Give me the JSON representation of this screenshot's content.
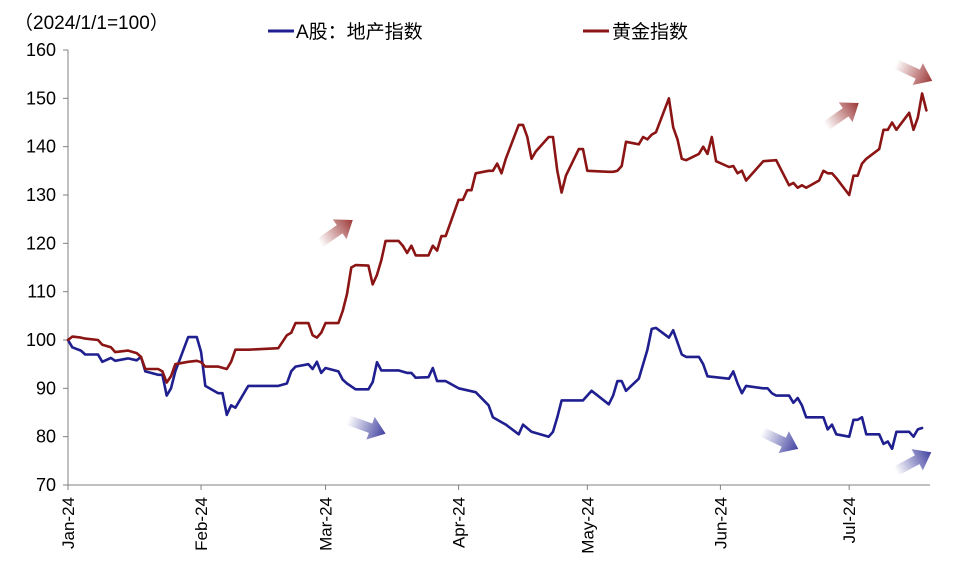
{
  "chart_data": {
    "type": "line",
    "title": "",
    "unit_label": "（2024/1/1=100）",
    "ylim": [
      70,
      160
    ],
    "yticks": [
      70,
      80,
      90,
      100,
      110,
      120,
      130,
      140,
      150,
      160
    ],
    "x_tick_labels": [
      "Jan-24",
      "Feb-24",
      "Mar-24",
      "Apr-24",
      "May-24",
      "Jun-24",
      "Jul-24"
    ],
    "x_tick_dates": [
      "2024-01-01",
      "2024-02-01",
      "2024-03-01",
      "2024-04-01",
      "2024-05-01",
      "2024-06-01",
      "2024-07-01"
    ],
    "grid": false,
    "legend_position": "top",
    "series": [
      {
        "name": "A股：地产指数",
        "color": "#1f1f8f",
        "points": [
          [
            "2024-01-01",
            100
          ],
          [
            "2024-01-02",
            98.5
          ],
          [
            "2024-01-04",
            97.8
          ],
          [
            "2024-01-05",
            97
          ],
          [
            "2024-01-08",
            97
          ],
          [
            "2024-01-09",
            95.5
          ],
          [
            "2024-01-11",
            96.3
          ],
          [
            "2024-01-12",
            95.7
          ],
          [
            "2024-01-15",
            96.2
          ],
          [
            "2024-01-17",
            95.8
          ],
          [
            "2024-01-18",
            96.5
          ],
          [
            "2024-01-19",
            93.5
          ],
          [
            "2024-01-22",
            92.8
          ],
          [
            "2024-01-23",
            92.8
          ],
          [
            "2024-01-24",
            88.5
          ],
          [
            "2024-01-25",
            90
          ],
          [
            "2024-01-26",
            93.5
          ],
          [
            "2024-01-29",
            100.6
          ],
          [
            "2024-01-31",
            100.6
          ],
          [
            "2024-02-01",
            97.5
          ],
          [
            "2024-02-02",
            90.5
          ],
          [
            "2024-02-05",
            89
          ],
          [
            "2024-02-06",
            89
          ],
          [
            "2024-02-07",
            84.5
          ],
          [
            "2024-02-08",
            86.5
          ],
          [
            "2024-02-09",
            86
          ],
          [
            "2024-02-12",
            90.5
          ],
          [
            "2024-02-19",
            90.5
          ],
          [
            "2024-02-21",
            91
          ],
          [
            "2024-02-22",
            93.5
          ],
          [
            "2024-02-23",
            94.5
          ],
          [
            "2024-02-26",
            95
          ],
          [
            "2024-02-27",
            94
          ],
          [
            "2024-02-28",
            95.5
          ],
          [
            "2024-02-29",
            93.2
          ],
          [
            "2024-03-01",
            94.2
          ],
          [
            "2024-03-04",
            93.5
          ],
          [
            "2024-03-05",
            91.8
          ],
          [
            "2024-03-06",
            91
          ],
          [
            "2024-03-08",
            89.8
          ],
          [
            "2024-03-11",
            89.8
          ],
          [
            "2024-03-12",
            91.3
          ],
          [
            "2024-03-13",
            95.4
          ],
          [
            "2024-03-14",
            93.7
          ],
          [
            "2024-03-18",
            93.7
          ],
          [
            "2024-03-20",
            93.2
          ],
          [
            "2024-03-21",
            93.2
          ],
          [
            "2024-03-22",
            92.2
          ],
          [
            "2024-03-25",
            92.3
          ],
          [
            "2024-03-26",
            94.2
          ],
          [
            "2024-03-27",
            91.5
          ],
          [
            "2024-03-29",
            91.5
          ],
          [
            "2024-04-01",
            90
          ],
          [
            "2024-04-05",
            89.2
          ],
          [
            "2024-04-08",
            86.5
          ],
          [
            "2024-04-09",
            84
          ],
          [
            "2024-04-10",
            83.5
          ],
          [
            "2024-04-12",
            82.5
          ],
          [
            "2024-04-15",
            80.5
          ],
          [
            "2024-04-16",
            82.5
          ],
          [
            "2024-04-18",
            81
          ],
          [
            "2024-04-22",
            80
          ],
          [
            "2024-04-23",
            81
          ],
          [
            "2024-04-24",
            84
          ],
          [
            "2024-04-25",
            87.5
          ],
          [
            "2024-04-30",
            87.5
          ],
          [
            "2024-05-02",
            89.5
          ],
          [
            "2024-05-06",
            86.7
          ],
          [
            "2024-05-07",
            88.5
          ],
          [
            "2024-05-08",
            91.5
          ],
          [
            "2024-05-09",
            91.5
          ],
          [
            "2024-05-10",
            89.5
          ],
          [
            "2024-05-13",
            92
          ],
          [
            "2024-05-15",
            98
          ],
          [
            "2024-05-16",
            102.3
          ],
          [
            "2024-05-17",
            102.5
          ],
          [
            "2024-05-20",
            100.5
          ],
          [
            "2024-05-21",
            102
          ],
          [
            "2024-05-23",
            97
          ],
          [
            "2024-05-24",
            96.5
          ],
          [
            "2024-05-27",
            96.5
          ],
          [
            "2024-05-28",
            95
          ],
          [
            "2024-05-29",
            92.5
          ],
          [
            "2024-06-03",
            92
          ],
          [
            "2024-06-04",
            93.5
          ],
          [
            "2024-06-05",
            91
          ],
          [
            "2024-06-06",
            89
          ],
          [
            "2024-06-07",
            90.5
          ],
          [
            "2024-06-11",
            90
          ],
          [
            "2024-06-12",
            90
          ],
          [
            "2024-06-13",
            89
          ],
          [
            "2024-06-14",
            88.5
          ],
          [
            "2024-06-17",
            88.5
          ],
          [
            "2024-06-18",
            87
          ],
          [
            "2024-06-19",
            88
          ],
          [
            "2024-06-20",
            86.5
          ],
          [
            "2024-06-21",
            84
          ],
          [
            "2024-06-25",
            84
          ],
          [
            "2024-06-26",
            81.5
          ],
          [
            "2024-06-27",
            82.5
          ],
          [
            "2024-06-28",
            80.5
          ],
          [
            "2024-07-01",
            80
          ],
          [
            "2024-07-02",
            83.5
          ],
          [
            "2024-07-03",
            83.5
          ],
          [
            "2024-07-04",
            84
          ],
          [
            "2024-07-05",
            80.5
          ],
          [
            "2024-07-08",
            80.5
          ],
          [
            "2024-07-09",
            78.5
          ],
          [
            "2024-07-10",
            79
          ],
          [
            "2024-07-11",
            77.5
          ],
          [
            "2024-07-12",
            81
          ],
          [
            "2024-07-15",
            81
          ],
          [
            "2024-07-16",
            80
          ],
          [
            "2024-07-17",
            81.5
          ],
          [
            "2024-07-18",
            81.8
          ]
        ]
      },
      {
        "name": "黄金指数",
        "color": "#8b1414",
        "points": [
          [
            "2024-01-01",
            100
          ],
          [
            "2024-01-02",
            100.7
          ],
          [
            "2024-01-04",
            100.5
          ],
          [
            "2024-01-05",
            100.3
          ],
          [
            "2024-01-08",
            100
          ],
          [
            "2024-01-09",
            99
          ],
          [
            "2024-01-11",
            98.5
          ],
          [
            "2024-01-12",
            97.5
          ],
          [
            "2024-01-15",
            97.8
          ],
          [
            "2024-01-17",
            97.3
          ],
          [
            "2024-01-18",
            96.5
          ],
          [
            "2024-01-19",
            94
          ],
          [
            "2024-01-22",
            94
          ],
          [
            "2024-01-23",
            93.5
          ],
          [
            "2024-01-24",
            91.2
          ],
          [
            "2024-01-25",
            92.5
          ],
          [
            "2024-01-26",
            95
          ],
          [
            "2024-01-29",
            95.5
          ],
          [
            "2024-01-31",
            95.7
          ],
          [
            "2024-02-01",
            95.4
          ],
          [
            "2024-02-02",
            94.5
          ],
          [
            "2024-02-05",
            94.5
          ],
          [
            "2024-02-07",
            94
          ],
          [
            "2024-02-08",
            95.5
          ],
          [
            "2024-02-09",
            98
          ],
          [
            "2024-02-12",
            98
          ],
          [
            "2024-02-19",
            98.3
          ],
          [
            "2024-02-21",
            101
          ],
          [
            "2024-02-22",
            101.5
          ],
          [
            "2024-02-23",
            103.5
          ],
          [
            "2024-02-26",
            103.5
          ],
          [
            "2024-02-27",
            101
          ],
          [
            "2024-02-28",
            100.5
          ],
          [
            "2024-02-29",
            101.5
          ],
          [
            "2024-03-01",
            103.5
          ],
          [
            "2024-03-04",
            103.5
          ],
          [
            "2024-03-05",
            106
          ],
          [
            "2024-03-06",
            109.5
          ],
          [
            "2024-03-07",
            115
          ],
          [
            "2024-03-08",
            115.5
          ],
          [
            "2024-03-11",
            115.4
          ],
          [
            "2024-03-12",
            111.5
          ],
          [
            "2024-03-13",
            113.5
          ],
          [
            "2024-03-14",
            116.5
          ],
          [
            "2024-03-15",
            120.5
          ],
          [
            "2024-03-18",
            120.5
          ],
          [
            "2024-03-19",
            119.5
          ],
          [
            "2024-03-20",
            118
          ],
          [
            "2024-03-21",
            119.5
          ],
          [
            "2024-03-22",
            117.5
          ],
          [
            "2024-03-25",
            117.5
          ],
          [
            "2024-03-26",
            119.5
          ],
          [
            "2024-03-27",
            118.5
          ],
          [
            "2024-03-28",
            121.5
          ],
          [
            "2024-03-29",
            121.5
          ],
          [
            "2024-04-01",
            129
          ],
          [
            "2024-04-02",
            129
          ],
          [
            "2024-04-03",
            131
          ],
          [
            "2024-04-04",
            131
          ],
          [
            "2024-04-05",
            134.5
          ],
          [
            "2024-04-08",
            135
          ],
          [
            "2024-04-09",
            135
          ],
          [
            "2024-04-10",
            136.5
          ],
          [
            "2024-04-11",
            134.5
          ],
          [
            "2024-04-12",
            137.5
          ],
          [
            "2024-04-15",
            144.5
          ],
          [
            "2024-04-16",
            144.5
          ],
          [
            "2024-04-17",
            142
          ],
          [
            "2024-04-18",
            137.5
          ],
          [
            "2024-04-19",
            139
          ],
          [
            "2024-04-22",
            142
          ],
          [
            "2024-04-23",
            142
          ],
          [
            "2024-04-24",
            135
          ],
          [
            "2024-04-25",
            130.5
          ],
          [
            "2024-04-26",
            134
          ],
          [
            "2024-04-29",
            139.5
          ],
          [
            "2024-04-30",
            139.5
          ],
          [
            "2024-05-01",
            135
          ],
          [
            "2024-05-06",
            134.8
          ],
          [
            "2024-05-07",
            134.8
          ],
          [
            "2024-05-08",
            135
          ],
          [
            "2024-05-09",
            136
          ],
          [
            "2024-05-10",
            141
          ],
          [
            "2024-05-13",
            140.5
          ],
          [
            "2024-05-14",
            142
          ],
          [
            "2024-05-15",
            141.5
          ],
          [
            "2024-05-16",
            142.5
          ],
          [
            "2024-05-17",
            143
          ],
          [
            "2024-05-20",
            150
          ],
          [
            "2024-05-21",
            144
          ],
          [
            "2024-05-22",
            141.5
          ],
          [
            "2024-05-23",
            137.5
          ],
          [
            "2024-05-24",
            137.2
          ],
          [
            "2024-05-27",
            138.5
          ],
          [
            "2024-05-28",
            140
          ],
          [
            "2024-05-29",
            138.5
          ],
          [
            "2024-05-30",
            142
          ],
          [
            "2024-05-31",
            137
          ],
          [
            "2024-06-03",
            135.8
          ],
          [
            "2024-06-04",
            136
          ],
          [
            "2024-06-05",
            134.5
          ],
          [
            "2024-06-06",
            135
          ],
          [
            "2024-06-07",
            133
          ],
          [
            "2024-06-11",
            137
          ],
          [
            "2024-06-14",
            137.2
          ],
          [
            "2024-06-17",
            132
          ],
          [
            "2024-06-18",
            132.5
          ],
          [
            "2024-06-19",
            131.5
          ],
          [
            "2024-06-20",
            132
          ],
          [
            "2024-06-21",
            131.5
          ],
          [
            "2024-06-24",
            133
          ],
          [
            "2024-06-25",
            135
          ],
          [
            "2024-06-26",
            134.5
          ],
          [
            "2024-06-27",
            134.5
          ],
          [
            "2024-06-28",
            133.5
          ],
          [
            "2024-07-01",
            130
          ],
          [
            "2024-07-02",
            134
          ],
          [
            "2024-07-03",
            134
          ],
          [
            "2024-07-04",
            136.5
          ],
          [
            "2024-07-05",
            137.5
          ],
          [
            "2024-07-08",
            139.5
          ],
          [
            "2024-07-09",
            143.5
          ],
          [
            "2024-07-10",
            143.5
          ],
          [
            "2024-07-11",
            145
          ],
          [
            "2024-07-12",
            143.5
          ],
          [
            "2024-07-15",
            147
          ],
          [
            "2024-07-16",
            143.5
          ],
          [
            "2024-07-17",
            146
          ],
          [
            "2024-07-18",
            151
          ],
          [
            "2024-07-19",
            147.5
          ]
        ]
      }
    ],
    "annotation_arrows": [
      {
        "direction": "up",
        "color": "#8b1414"
      },
      {
        "direction": "down",
        "color": "#1f1f8f"
      },
      {
        "direction": "up",
        "color": "#8b1414"
      },
      {
        "direction": "down",
        "color": "#1f1f8f"
      },
      {
        "direction": "up",
        "color": "#8b1414"
      },
      {
        "direction": "up",
        "color": "#1f1f8f"
      }
    ]
  }
}
